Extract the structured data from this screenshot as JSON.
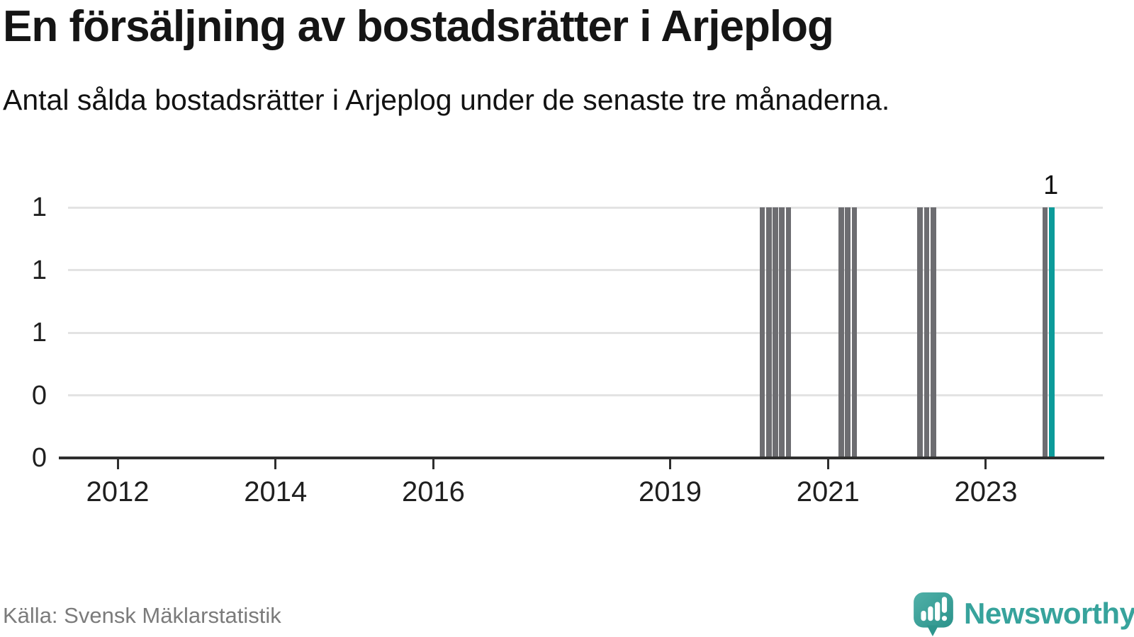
{
  "page": {
    "title": "En försäljning av bostadsrätter i Arjeplog",
    "subtitle": "Antal sålda bostadsrätter i Arjeplog under de senaste tre månaderna."
  },
  "footer": {
    "source": "Källa: Svensk Mäklarstatistik",
    "brand_name": "Newsworthy"
  },
  "colors": {
    "bar": "#6d6d71",
    "bar_highlight": "#0c9b9a",
    "grid": "#e3e3e3",
    "axis": "#2e2e2e",
    "brand_teal": "#37a39c",
    "icon_teal_light": "#50b0a8",
    "icon_teal_dark": "#2b938b"
  },
  "chart_data": {
    "type": "bar",
    "title": "En försäljning av bostadsrätter i Arjeplog",
    "subtitle": "Antal sålda bostadsrätter i Arjeplog under de senaste tre månaderna.",
    "ylim": [
      0,
      1
    ],
    "grid": true,
    "legend": "none",
    "y_ticks": [
      {
        "value": 1.0,
        "label": "1"
      },
      {
        "value": 0.75,
        "label": "1"
      },
      {
        "value": 0.5,
        "label": "1"
      },
      {
        "value": 0.25,
        "label": "0"
      },
      {
        "value": 0.0,
        "label": "0"
      }
    ],
    "x_ticks": [
      {
        "year": 2012,
        "label": "2012"
      },
      {
        "year": 2014,
        "label": "2014"
      },
      {
        "year": 2016,
        "label": "2016"
      },
      {
        "year": 2019,
        "label": "2019"
      },
      {
        "year": 2021,
        "label": "2021"
      },
      {
        "year": 2023,
        "label": "2023"
      }
    ],
    "bars": [
      {
        "period": "2020-03",
        "value": 1,
        "highlight": false
      },
      {
        "period": "2020-04",
        "value": 1,
        "highlight": false
      },
      {
        "period": "2020-05",
        "value": 1,
        "highlight": false
      },
      {
        "period": "2020-06",
        "value": 1,
        "highlight": false
      },
      {
        "period": "2020-07",
        "value": 1,
        "highlight": false
      },
      {
        "period": "2021-03",
        "value": 1,
        "highlight": false
      },
      {
        "period": "2021-04",
        "value": 1,
        "highlight": false
      },
      {
        "period": "2021-05",
        "value": 1,
        "highlight": false
      },
      {
        "period": "2022-03",
        "value": 1,
        "highlight": false
      },
      {
        "period": "2022-04",
        "value": 1,
        "highlight": false
      },
      {
        "period": "2022-05",
        "value": 1,
        "highlight": false
      },
      {
        "period": "2023-10",
        "value": 1,
        "highlight": false
      },
      {
        "period": "2023-11",
        "value": 1,
        "highlight": true,
        "label": "1"
      }
    ]
  }
}
